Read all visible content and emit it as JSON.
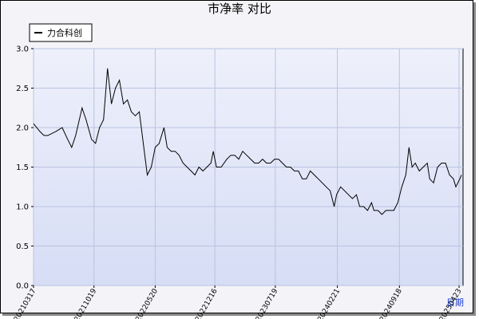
{
  "chart_data": {
    "type": "line",
    "title": "市净率  对比",
    "x_label": "日期",
    "legend": "top-left",
    "grid": true,
    "xlim": [
      0,
      540
    ],
    "xticks": [
      {
        "value": 0,
        "label": "20210317"
      },
      {
        "value": 76,
        "label": "20211019"
      },
      {
        "value": 153,
        "label": "20220520"
      },
      {
        "value": 228,
        "label": "20221216"
      },
      {
        "value": 304,
        "label": "20230719"
      },
      {
        "value": 382,
        "label": "20240221"
      },
      {
        "value": 460,
        "label": "20240918"
      },
      {
        "value": 535,
        "label": "20250423"
      }
    ],
    "ylim": [
      0,
      3
    ],
    "yticks": [
      {
        "value": 0,
        "label": "0.0"
      },
      {
        "value": 0.5,
        "label": "0.5"
      },
      {
        "value": 1,
        "label": "1.0"
      },
      {
        "value": 1.5,
        "label": "1.5"
      },
      {
        "value": 2,
        "label": "2.0"
      },
      {
        "value": 2.5,
        "label": "2.5"
      },
      {
        "value": 3,
        "label": "3.0"
      }
    ],
    "x": [
      0,
      8,
      13,
      18,
      28,
      36,
      43,
      48,
      53,
      61,
      66,
      73,
      78,
      83,
      88,
      93,
      98,
      103,
      108,
      113,
      118,
      123,
      128,
      133,
      138,
      143,
      148,
      153,
      158,
      164,
      168,
      173,
      178,
      183,
      188,
      193,
      198,
      203,
      208,
      213,
      218,
      223,
      226,
      230,
      236,
      243,
      248,
      253,
      258,
      263,
      268,
      273,
      278,
      283,
      288,
      293,
      298,
      303,
      308,
      313,
      318,
      323,
      328,
      333,
      338,
      343,
      348,
      353,
      358,
      363,
      368,
      373,
      378,
      381,
      386,
      391,
      396,
      401,
      406,
      410,
      415,
      420,
      425,
      428,
      433,
      438,
      443,
      448,
      453,
      458,
      463,
      468,
      472,
      476,
      480,
      485,
      490,
      495,
      498,
      503,
      508,
      513,
      518,
      523,
      528,
      531,
      536,
      538
    ],
    "series": [
      {
        "name": "力合科创",
        "color": "#000000",
        "values": [
          2.05,
          1.95,
          1.9,
          1.9,
          1.95,
          2.0,
          1.85,
          1.75,
          1.9,
          2.25,
          2.1,
          1.85,
          1.8,
          2.0,
          2.1,
          2.75,
          2.3,
          2.5,
          2.6,
          2.3,
          2.35,
          2.2,
          2.15,
          2.2,
          1.8,
          1.4,
          1.5,
          1.75,
          1.8,
          2.0,
          1.75,
          1.7,
          1.7,
          1.65,
          1.55,
          1.5,
          1.45,
          1.4,
          1.5,
          1.45,
          1.5,
          1.55,
          1.7,
          1.5,
          1.5,
          1.6,
          1.65,
          1.65,
          1.6,
          1.7,
          1.65,
          1.6,
          1.55,
          1.55,
          1.6,
          1.55,
          1.55,
          1.6,
          1.6,
          1.55,
          1.5,
          1.5,
          1.45,
          1.45,
          1.35,
          1.35,
          1.45,
          1.4,
          1.35,
          1.3,
          1.25,
          1.2,
          1.0,
          1.15,
          1.25,
          1.2,
          1.15,
          1.1,
          1.15,
          1.0,
          1.0,
          0.95,
          1.05,
          0.95,
          0.95,
          0.9,
          0.95,
          0.95,
          0.95,
          1.05,
          1.25,
          1.4,
          1.75,
          1.5,
          1.55,
          1.45,
          1.5,
          1.55,
          1.35,
          1.3,
          1.5,
          1.55,
          1.55,
          1.4,
          1.35,
          1.25,
          1.35,
          1.4
        ]
      }
    ]
  }
}
